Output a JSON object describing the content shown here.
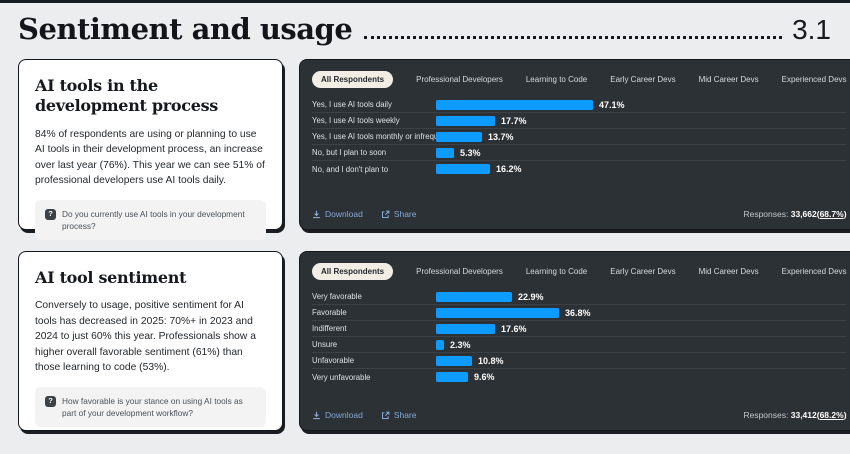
{
  "header": {
    "title": "Sentiment and usage",
    "section": "3.1"
  },
  "cards": [
    {
      "title": "AI tools in the development process",
      "body": "84% of respondents are using or planning to use AI tools in their development process, an increase over last year (76%). This year we can see 51% of professional developers use AI tools daily.",
      "question": "Do you currently use AI tools in your development process?"
    },
    {
      "title": "AI tool sentiment",
      "body": "Conversely to usage, positive sentiment for AI tools has decreased in 2025: 70%+ in 2023 and 2024 to just 60% this year. Professionals show a higher overall favorable sentiment (61%) than those learning to code (53%).",
      "question": "How favorable is your stance on using AI tools as part of your development workflow?"
    }
  ],
  "panels": {
    "tabs": [
      "All Respondents",
      "Professional Developers",
      "Learning to Code",
      "Early Career Devs",
      "Mid Career Devs",
      "Experienced Devs"
    ],
    "active_tab": "All Respondents",
    "download_label": "Download",
    "share_label": "Share",
    "responses_label": "Responses:"
  },
  "colors": {
    "bar": "#0d9bff",
    "panel_bg": "#2c3136",
    "link": "#84a8d5",
    "active_tab_bg": "#f2eee6"
  },
  "chart_data": [
    {
      "type": "bar",
      "orientation": "horizontal",
      "categories": [
        "Yes, I use AI tools daily",
        "Yes, I use AI tools weekly",
        "Yes, I use AI tools monthly or infrequently",
        "No, but I plan to soon",
        "No, and I don't plan to"
      ],
      "values": [
        47.1,
        17.7,
        13.7,
        5.3,
        16.2
      ],
      "value_suffix": "%",
      "responses": "33,662",
      "responses_pct": "68.7%"
    },
    {
      "type": "bar",
      "orientation": "horizontal",
      "categories": [
        "Very favorable",
        "Favorable",
        "Indifferent",
        "Unsure",
        "Unfavorable",
        "Very unfavorable"
      ],
      "values": [
        22.9,
        36.8,
        17.6,
        2.3,
        10.8,
        9.6
      ],
      "value_suffix": "%",
      "responses": "33,412",
      "responses_pct": "68.2%"
    }
  ]
}
